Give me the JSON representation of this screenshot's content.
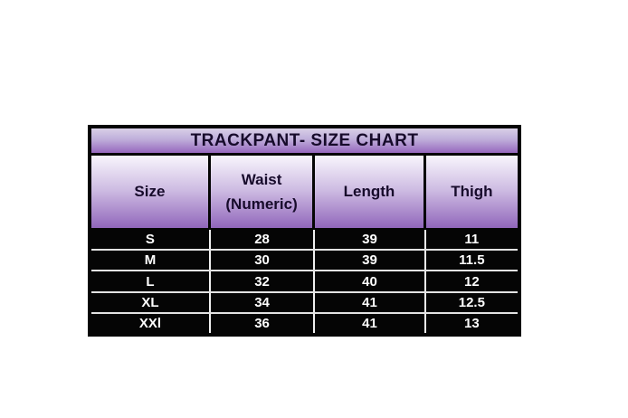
{
  "chart_data": {
    "type": "table",
    "title": "TRACKPANT- SIZE CHART",
    "columns": [
      "Size",
      "Waist (Numeric)",
      "Length",
      "Thigh"
    ],
    "rows": [
      [
        "S",
        "28",
        "39",
        "11"
      ],
      [
        "M",
        "30",
        "39",
        "11.5"
      ],
      [
        "L",
        "32",
        "40",
        "12"
      ],
      [
        "XL",
        "34",
        "41",
        "12.5"
      ],
      [
        "XXl",
        "36",
        "41",
        "13"
      ]
    ]
  },
  "colors": {
    "page_background": "#ffffff",
    "title_gradient_top": "#d8cfe7",
    "title_gradient_bottom": "#9668bd",
    "header_gradient_top": "#f8f5fc",
    "header_gradient_bottom": "#9166bb",
    "header_text": "#170b2b",
    "body_background": "#050505",
    "body_text": "#ffffff",
    "border": "#050505",
    "row_separator": "#e3e3e3"
  }
}
